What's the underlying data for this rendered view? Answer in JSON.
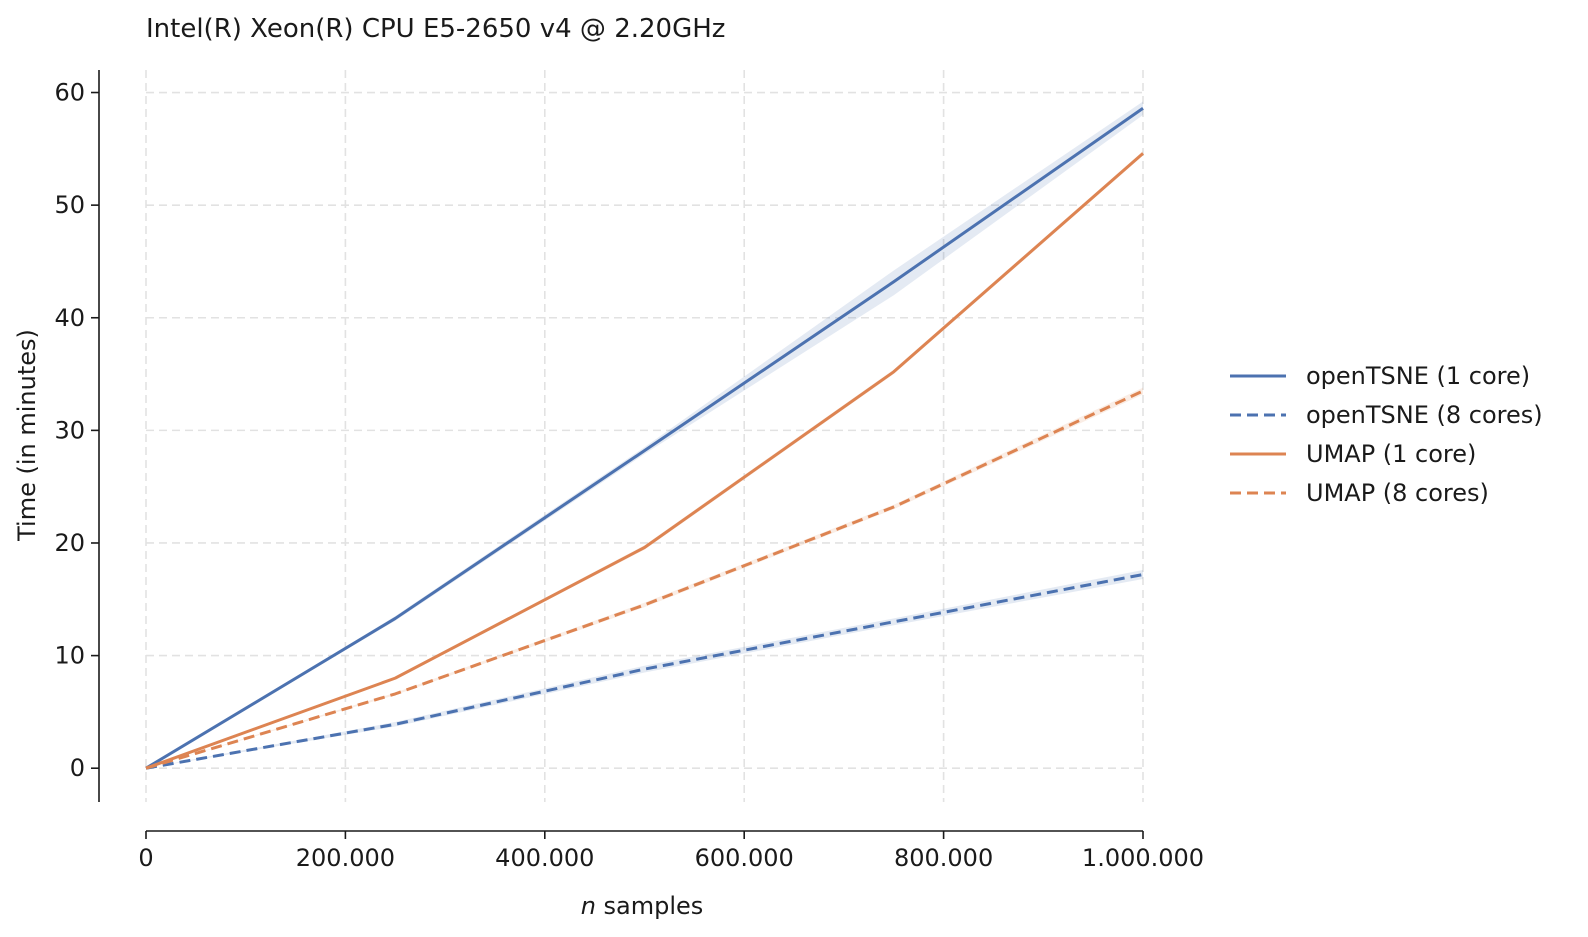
{
  "chart_data": {
    "type": "line",
    "title": "Intel(R) Xeon(R) CPU E5-2650 v4 @ 2.20GHz",
    "xlabel_italic": "n",
    "xlabel_rest": " samples",
    "ylabel": "Time (in minutes)",
    "xlim": [
      0,
      1000000
    ],
    "ylim": [
      -3,
      62
    ],
    "x_ticks": [
      0,
      200000,
      400000,
      600000,
      800000,
      1000000
    ],
    "x_tick_labels": [
      "0",
      "200.000",
      "400.000",
      "600.000",
      "800.000",
      "1.000.000"
    ],
    "y_ticks": [
      0,
      10,
      20,
      30,
      40,
      50,
      60
    ],
    "y_tick_labels": [
      "0",
      "10",
      "20",
      "30",
      "40",
      "50",
      "60"
    ],
    "grid": true,
    "legend_position": "right",
    "x": [
      0,
      250000,
      500000,
      750000,
      1000000
    ],
    "series": [
      {
        "name": "openTSNE (1 core)",
        "color": "#4c72b0",
        "dashed": false,
        "values": [
          0,
          13.3,
          28.2,
          43.2,
          58.6
        ],
        "band_lo": [
          0,
          13.1,
          27.9,
          42.0,
          58.0
        ],
        "band_hi": [
          0,
          13.5,
          28.5,
          44.2,
          59.2
        ]
      },
      {
        "name": "openTSNE (8 cores)",
        "color": "#4c72b0",
        "dashed": true,
        "values": [
          0,
          3.9,
          8.8,
          13.0,
          17.2
        ],
        "band_lo": [
          0,
          3.7,
          8.5,
          12.7,
          16.8
        ],
        "band_hi": [
          0,
          4.1,
          9.1,
          13.3,
          17.6
        ]
      },
      {
        "name": "UMAP (1 core)",
        "color": "#dd8452",
        "dashed": false,
        "values": [
          0,
          8.0,
          19.6,
          35.2,
          54.6
        ],
        "band_lo": [
          0,
          7.9,
          19.4,
          35.0,
          54.4
        ],
        "band_hi": [
          0,
          8.1,
          19.8,
          35.4,
          54.8
        ]
      },
      {
        "name": "UMAP (8 cores)",
        "color": "#dd8452",
        "dashed": true,
        "values": [
          0,
          6.6,
          14.5,
          23.2,
          33.5
        ],
        "band_lo": [
          0,
          6.5,
          14.3,
          23.0,
          33.2
        ],
        "band_hi": [
          0,
          6.7,
          14.7,
          23.4,
          33.8
        ]
      }
    ]
  }
}
